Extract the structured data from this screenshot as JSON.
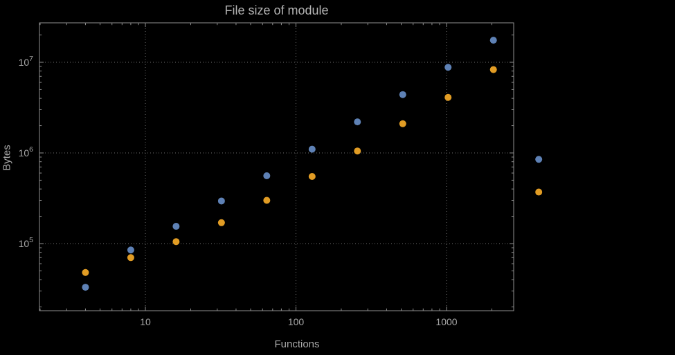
{
  "chart_data": {
    "type": "scatter",
    "title": "File size of module",
    "xlabel": "Functions",
    "ylabel": "Bytes",
    "x_scale": "log",
    "y_scale": "log",
    "grid": true,
    "legend": "none",
    "x_range_log10": [
      0.2966,
      3.446
    ],
    "y_range_log10": [
      4.2595,
      7.435
    ],
    "x": [
      4,
      8,
      16,
      32,
      64,
      128,
      256,
      512,
      1024,
      2048,
      4096
    ],
    "series": [
      {
        "name": "blue",
        "color": "#5e81b5",
        "values": [
          33000,
          85000,
          155000,
          295000,
          560000,
          1100000,
          2200000,
          4400000,
          8800000,
          17500000,
          850000
        ]
      },
      {
        "name": "orange",
        "color": "#e19c24",
        "values": [
          48000,
          70000,
          105000,
          170000,
          300000,
          550000,
          1050000,
          2100000,
          4100000,
          8300000,
          370000
        ]
      }
    ],
    "x_ticks_labeled": [
      {
        "value": 10,
        "label": "10"
      },
      {
        "value": 100,
        "label": "100"
      },
      {
        "value": 1000,
        "label": "1000"
      }
    ],
    "y_ticks_labeled": [
      {
        "value": 100000,
        "mantissa": "10",
        "exponent": "5"
      },
      {
        "value": 1000000,
        "mantissa": "10",
        "exponent": "6"
      },
      {
        "value": 10000000,
        "mantissa": "10",
        "exponent": "7"
      }
    ]
  }
}
